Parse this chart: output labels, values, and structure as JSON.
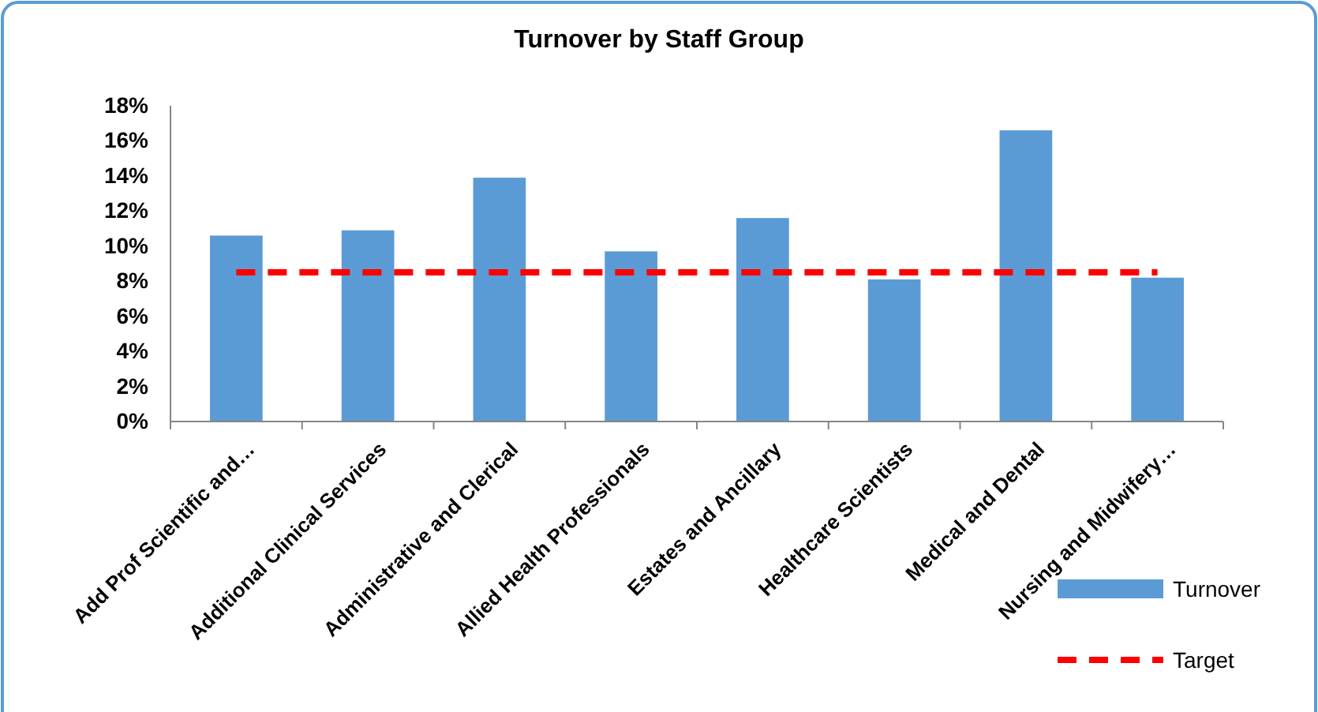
{
  "chart_data": {
    "type": "bar",
    "title": "Turnover by Staff Group",
    "categories": [
      "Add Prof Scientific and…",
      "Additional Clinical Services",
      "Administrative and Clerical",
      "Allied Health Professionals",
      "Estates and Ancillary",
      "Healthcare Scientists",
      "Medical and Dental",
      "Nursing and Midwifery…"
    ],
    "series": [
      {
        "name": "Turnover",
        "color": "#5b9bd5",
        "values": [
          10.6,
          10.9,
          13.9,
          9.7,
          11.6,
          8.1,
          16.6,
          8.2
        ]
      },
      {
        "name": "Target",
        "type": "line",
        "color": "#ff0000",
        "line_style": "dashed",
        "marker": "none",
        "values": [
          8.5,
          8.5,
          8.5,
          8.5,
          8.5,
          8.5,
          8.5,
          8.5
        ]
      }
    ],
    "ylim": [
      0,
      18
    ],
    "yticks": [
      {
        "value": 0,
        "label": "0%"
      },
      {
        "value": 2,
        "label": "2%"
      },
      {
        "value": 4,
        "label": "4%"
      },
      {
        "value": 6,
        "label": "6%"
      },
      {
        "value": 8,
        "label": "8%"
      },
      {
        "value": 10,
        "label": "10%"
      },
      {
        "value": 12,
        "label": "12%"
      },
      {
        "value": 14,
        "label": "14%"
      },
      {
        "value": 16,
        "label": "16%"
      },
      {
        "value": 18,
        "label": "18%"
      }
    ],
    "grid": false,
    "legend": "bottom right"
  }
}
